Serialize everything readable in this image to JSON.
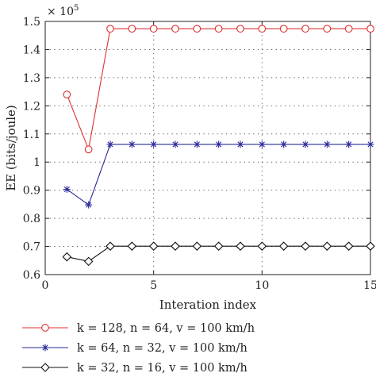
{
  "chart_data": {
    "type": "line",
    "xlabel": "Interation index",
    "ylabel": "EE (bits/joule)",
    "y_multiplier": "× 10",
    "y_multiplier_exp": "5",
    "xlim": [
      0,
      15
    ],
    "ylim": [
      0.6,
      1.5
    ],
    "x_ticks": [
      0,
      5,
      10,
      15
    ],
    "y_ticks": [
      0.6,
      0.7,
      0.8,
      0.9,
      1.0,
      1.1,
      1.2,
      1.3,
      1.4,
      1.5
    ],
    "x_tick_labels": [
      "0",
      "5",
      "10",
      "15"
    ],
    "y_tick_labels": [
      "0.6",
      "0.7",
      "0.8",
      "0.9",
      "1",
      "1.1",
      "1.2",
      "1.3",
      "1.4",
      "1.5"
    ],
    "grid": true,
    "legend_position": "bottom",
    "x": [
      1,
      2,
      3,
      4,
      5,
      6,
      7,
      8,
      9,
      10,
      11,
      12,
      13,
      14,
      15
    ],
    "series": [
      {
        "name": "k = 128, n = 64, v = 100 km/h",
        "color": "#e03030",
        "marker": "circle",
        "values": [
          1.24,
          1.045,
          1.474,
          1.474,
          1.474,
          1.474,
          1.474,
          1.474,
          1.474,
          1.474,
          1.474,
          1.474,
          1.474,
          1.474,
          1.474
        ]
      },
      {
        "name": "k = 64, n = 32, v = 100 km/h",
        "color": "#2a2a9a",
        "marker": "star",
        "values": [
          0.903,
          0.848,
          1.063,
          1.063,
          1.063,
          1.063,
          1.063,
          1.063,
          1.063,
          1.063,
          1.063,
          1.063,
          1.063,
          1.063,
          1.063
        ]
      },
      {
        "name": "k = 32, n = 16, v = 100 km/h",
        "color": "#111111",
        "marker": "diamond",
        "values": [
          0.663,
          0.647,
          0.701,
          0.701,
          0.701,
          0.701,
          0.701,
          0.701,
          0.701,
          0.701,
          0.701,
          0.701,
          0.701,
          0.701,
          0.701
        ]
      }
    ]
  }
}
